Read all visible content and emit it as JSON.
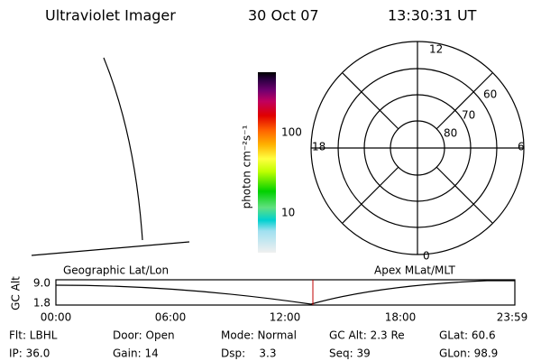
{
  "header": {
    "title": "Ultraviolet Imager",
    "date": "30 Oct 07",
    "time": "13:30:31 UT"
  },
  "colorbar": {
    "label": "photon cm⁻²s⁻¹",
    "ticks": [
      "100",
      "10"
    ]
  },
  "polar": {
    "mlt_labels": [
      "12",
      "6",
      "0",
      "18"
    ],
    "lat_labels": [
      "60",
      "70",
      "80"
    ]
  },
  "strip": {
    "y_label": "GC Alt",
    "yticks": [
      "9.0",
      "1.8"
    ],
    "left_label": "Geographic Lat/Lon",
    "right_label": "Apex MLat/MLT",
    "xticks": [
      "00:00",
      "06:00",
      "12:00",
      "18:00",
      "23:59"
    ]
  },
  "info": {
    "rows": [
      [
        "Flt: LBHL",
        "Door: Open",
        "Mode: Normal",
        "GC Alt: 2.3 Re",
        "GLat: 60.6"
      ],
      [
        "IP: 36.0",
        "Gain: 14",
        "Dsp:    3.3",
        "Seq: 39",
        "GLon: 98.9"
      ]
    ]
  }
}
